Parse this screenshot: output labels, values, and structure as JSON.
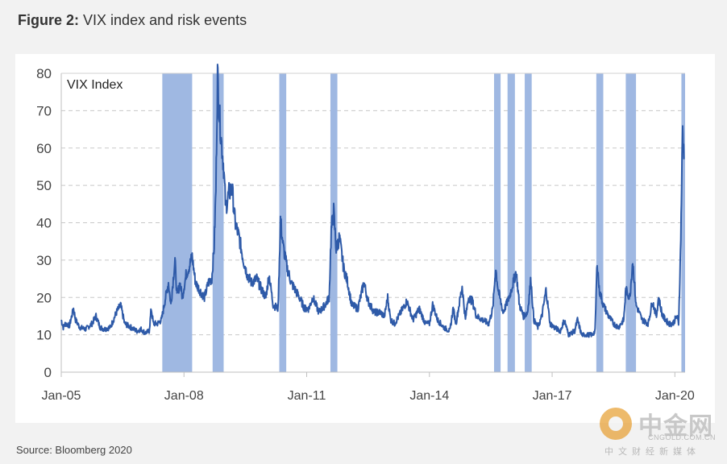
{
  "figure": {
    "label": "Figure 2:",
    "title": "VIX index and risk events",
    "source": "Source: Bloomberg 2020"
  },
  "watermark": {
    "name": "中金网",
    "domain": "CNGOLD.COM.CN",
    "tagline": "中文财经新媒体"
  },
  "chart_data": {
    "type": "line",
    "series": [
      {
        "name": "VIX Index",
        "color": "#2e5aa8",
        "points": [
          [
            2005.0,
            14
          ],
          [
            2005.05,
            12
          ],
          [
            2005.1,
            13
          ],
          [
            2005.2,
            12.5
          ],
          [
            2005.3,
            17
          ],
          [
            2005.35,
            14
          ],
          [
            2005.45,
            12
          ],
          [
            2005.6,
            11.5
          ],
          [
            2005.75,
            13
          ],
          [
            2005.85,
            15
          ],
          [
            2005.95,
            12
          ],
          [
            2006.05,
            11.5
          ],
          [
            2006.2,
            12
          ],
          [
            2006.35,
            16
          ],
          [
            2006.45,
            18
          ],
          [
            2006.55,
            13
          ],
          [
            2006.7,
            12
          ],
          [
            2006.85,
            11
          ],
          [
            2006.95,
            11.5
          ],
          [
            2007.05,
            10.5
          ],
          [
            2007.15,
            11
          ],
          [
            2007.2,
            17
          ],
          [
            2007.25,
            13
          ],
          [
            2007.35,
            13
          ],
          [
            2007.45,
            14
          ],
          [
            2007.55,
            20
          ],
          [
            2007.62,
            24
          ],
          [
            2007.68,
            18
          ],
          [
            2007.78,
            30
          ],
          [
            2007.83,
            20
          ],
          [
            2007.9,
            24
          ],
          [
            2007.96,
            20
          ],
          [
            2008.05,
            26
          ],
          [
            2008.12,
            28
          ],
          [
            2008.2,
            31
          ],
          [
            2008.28,
            24
          ],
          [
            2008.38,
            22
          ],
          [
            2008.5,
            20
          ],
          [
            2008.6,
            24
          ],
          [
            2008.68,
            25
          ],
          [
            2008.74,
            34
          ],
          [
            2008.78,
            49
          ],
          [
            2008.82,
            80
          ],
          [
            2008.86,
            70
          ],
          [
            2008.92,
            61
          ],
          [
            2008.97,
            55
          ],
          [
            2009.02,
            44
          ],
          [
            2009.1,
            48
          ],
          [
            2009.18,
            49
          ],
          [
            2009.25,
            40
          ],
          [
            2009.35,
            36
          ],
          [
            2009.45,
            30
          ],
          [
            2009.55,
            26
          ],
          [
            2009.65,
            24
          ],
          [
            2009.78,
            25
          ],
          [
            2009.9,
            22
          ],
          [
            2010.0,
            20
          ],
          [
            2010.08,
            26
          ],
          [
            2010.18,
            18
          ],
          [
            2010.3,
            17
          ],
          [
            2010.36,
            41
          ],
          [
            2010.42,
            34
          ],
          [
            2010.52,
            28
          ],
          [
            2010.62,
            24
          ],
          [
            2010.72,
            22
          ],
          [
            2010.82,
            20
          ],
          [
            2010.95,
            17
          ],
          [
            2011.05,
            17
          ],
          [
            2011.15,
            20
          ],
          [
            2011.3,
            16
          ],
          [
            2011.45,
            18
          ],
          [
            2011.55,
            20
          ],
          [
            2011.6,
            38
          ],
          [
            2011.66,
            43
          ],
          [
            2011.72,
            33
          ],
          [
            2011.8,
            36
          ],
          [
            2011.9,
            28
          ],
          [
            2012.0,
            24
          ],
          [
            2012.1,
            18
          ],
          [
            2012.25,
            17
          ],
          [
            2012.4,
            24
          ],
          [
            2012.5,
            19
          ],
          [
            2012.65,
            16
          ],
          [
            2012.8,
            16
          ],
          [
            2012.9,
            15
          ],
          [
            2012.98,
            20
          ],
          [
            2013.05,
            14
          ],
          [
            2013.15,
            13
          ],
          [
            2013.3,
            16
          ],
          [
            2013.45,
            19
          ],
          [
            2013.6,
            14
          ],
          [
            2013.75,
            17
          ],
          [
            2013.9,
            13
          ],
          [
            2014.0,
            13
          ],
          [
            2014.08,
            18
          ],
          [
            2014.2,
            14
          ],
          [
            2014.35,
            12
          ],
          [
            2014.5,
            11
          ],
          [
            2014.58,
            17
          ],
          [
            2014.65,
            13
          ],
          [
            2014.8,
            23
          ],
          [
            2014.88,
            14
          ],
          [
            2014.95,
            20
          ],
          [
            2015.05,
            19
          ],
          [
            2015.15,
            15
          ],
          [
            2015.3,
            14
          ],
          [
            2015.45,
            13
          ],
          [
            2015.55,
            17
          ],
          [
            2015.62,
            28
          ],
          [
            2015.68,
            22
          ],
          [
            2015.8,
            16
          ],
          [
            2015.95,
            20
          ],
          [
            2016.05,
            24
          ],
          [
            2016.12,
            27
          ],
          [
            2016.2,
            18
          ],
          [
            2016.3,
            15
          ],
          [
            2016.4,
            16
          ],
          [
            2016.48,
            25
          ],
          [
            2016.55,
            14
          ],
          [
            2016.65,
            12
          ],
          [
            2016.75,
            15
          ],
          [
            2016.85,
            22
          ],
          [
            2016.95,
            13
          ],
          [
            2017.05,
            12
          ],
          [
            2017.2,
            11
          ],
          [
            2017.3,
            14
          ],
          [
            2017.4,
            10
          ],
          [
            2017.55,
            11
          ],
          [
            2017.62,
            14
          ],
          [
            2017.72,
            10
          ],
          [
            2017.85,
            10
          ],
          [
            2017.98,
            10
          ],
          [
            2018.05,
            11
          ],
          [
            2018.1,
            30
          ],
          [
            2018.15,
            22
          ],
          [
            2018.25,
            18
          ],
          [
            2018.38,
            15
          ],
          [
            2018.5,
            13
          ],
          [
            2018.62,
            12
          ],
          [
            2018.75,
            14
          ],
          [
            2018.8,
            22
          ],
          [
            2018.9,
            20
          ],
          [
            2018.97,
            30
          ],
          [
            2019.05,
            18
          ],
          [
            2019.2,
            14
          ],
          [
            2019.35,
            13
          ],
          [
            2019.45,
            19
          ],
          [
            2019.55,
            15
          ],
          [
            2019.6,
            20
          ],
          [
            2019.7,
            15
          ],
          [
            2019.85,
            13
          ],
          [
            2019.95,
            13
          ],
          [
            2020.05,
            15
          ],
          [
            2020.09,
            13
          ],
          [
            2020.13,
            28
          ],
          [
            2020.16,
            46
          ],
          [
            2020.19,
            66
          ],
          [
            2020.22,
            57
          ]
        ]
      }
    ],
    "x_ticks": [
      {
        "value": 2005.0,
        "label": "Jan-05"
      },
      {
        "value": 2008.0,
        "label": "Jan-08"
      },
      {
        "value": 2011.0,
        "label": "Jan-11"
      },
      {
        "value": 2014.0,
        "label": "Jan-14"
      },
      {
        "value": 2017.0,
        "label": "Jan-17"
      },
      {
        "value": 2020.0,
        "label": "Jan-20"
      }
    ],
    "xlim": [
      2005.0,
      2020.25
    ],
    "ylim": [
      0,
      80
    ],
    "y_ticks": [
      0,
      10,
      20,
      30,
      40,
      50,
      60,
      70,
      80
    ],
    "grid": "horizontal-dashed",
    "risk_events": [
      [
        2007.47,
        2008.2
      ],
      [
        2008.7,
        2008.97
      ],
      [
        2010.33,
        2010.5
      ],
      [
        2011.58,
        2011.75
      ],
      [
        2015.58,
        2015.74
      ],
      [
        2015.91,
        2016.09
      ],
      [
        2016.33,
        2016.5
      ],
      [
        2018.08,
        2018.25
      ],
      [
        2018.8,
        2019.05
      ],
      [
        2020.16,
        2020.25
      ]
    ],
    "event_color": "#9fb8e2",
    "legend": "inside top-left"
  }
}
